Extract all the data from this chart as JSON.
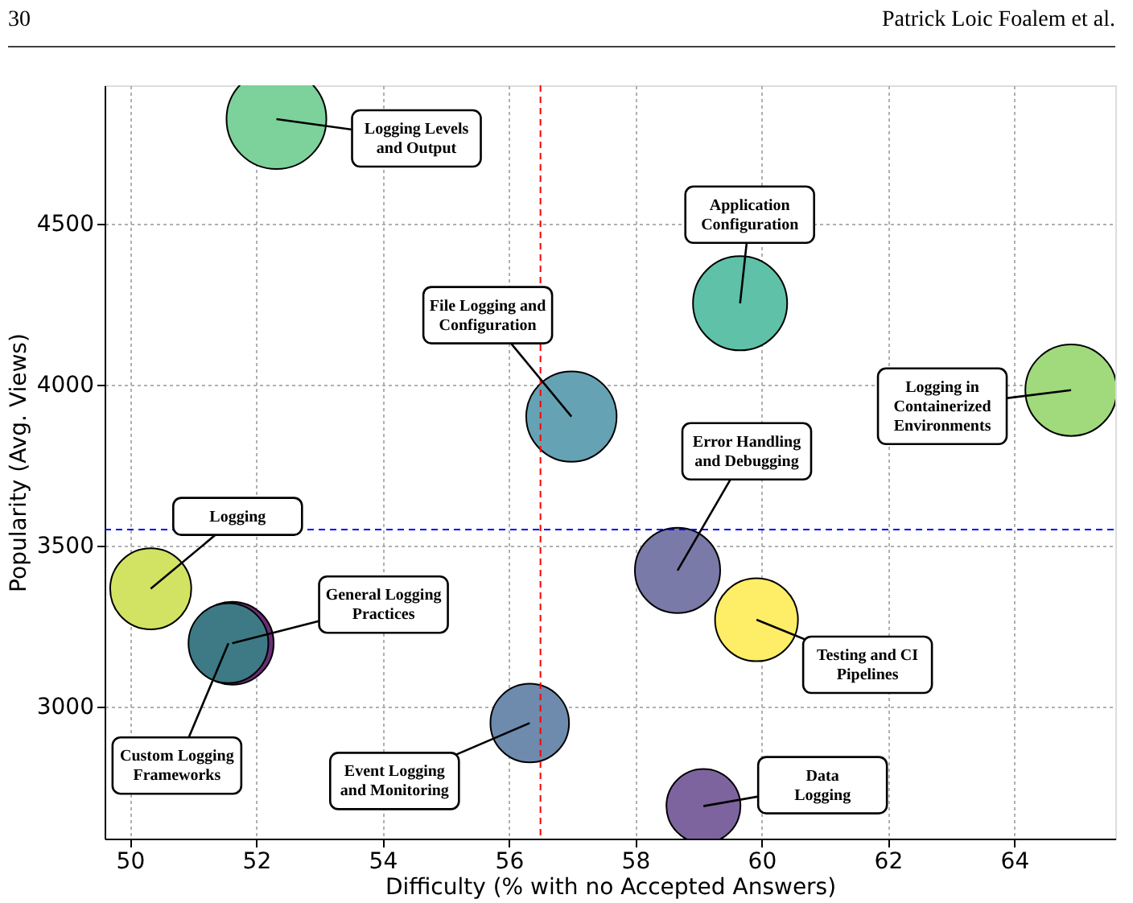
{
  "chart_data": {
    "type": "bubble",
    "x": [
      52.32,
      59.66,
      64.9,
      56.99,
      58.67,
      59.92,
      50.33,
      51.62,
      51.56,
      56.33,
      59.08
    ],
    "values": [
      4825,
      4253,
      3983,
      3901,
      3423,
      3270,
      3366,
      3197,
      3197,
      2949,
      2691
    ],
    "sizes": [
      1,
      0.89,
      0.84,
      0.82,
      0.73,
      0.69,
      0.66,
      0.69,
      0.64,
      0.62,
      0.55
    ],
    "colors": [
      "#7dd19a",
      "#5fc1a8",
      "#a0da7c",
      "#65a2b4",
      "#7a7aa8",
      "#fded67",
      "#d2e363",
      "#6b2d78",
      "#3e7a86",
      "#6e8aad",
      "#7d649e"
    ],
    "xlabel": "Difficulty (% with no Accepted Answers)",
    "ylabel": "Popularity (Avg. Views)",
    "xlim": [
      49.6,
      65.6
    ],
    "xticks": [
      50,
      52,
      54,
      56,
      58,
      60,
      62,
      64
    ],
    "ylim": [
      2590,
      4930
    ],
    "yticks": [
      3000,
      3500,
      4000,
      4500
    ],
    "grid": true,
    "legend": false,
    "ref_lines": [
      {
        "axis": "x",
        "value": 56.5,
        "color": "#ff0000",
        "line_style": "dashed"
      },
      {
        "axis": "y",
        "value": 3550,
        "color": "#0000ff",
        "line_style": "dashed"
      }
    ],
    "annotations": [
      "30",
      "Patrick Loic Foalem et al.",
      {
        "text": "Logging Levels\nand Output",
        "x": 52.32,
        "y": 4825
      },
      {
        "text": "Application\nConfiguration",
        "x": 59.66,
        "y": 4253
      },
      {
        "text": "Logging in\nContainerized\nEnvironments",
        "x": 64.9,
        "y": 3983
      },
      {
        "text": "File Logging and\nConfiguration",
        "x": 56.99,
        "y": 3901
      },
      {
        "text": "Error Handling\nand Debugging",
        "x": 58.67,
        "y": 3423
      },
      {
        "text": "Testing and CI\nPipelines",
        "x": 59.92,
        "y": 3270
      },
      {
        "text": "Logging",
        "x": 50.33,
        "y": 3366
      },
      {
        "text": "General Logging\nPractices",
        "x": 51.62,
        "y": 3197
      },
      {
        "text": "Custom Logging\nFrameworks",
        "x": 51.56,
        "y": 3197
      },
      {
        "text": "Event Logging\nand Monitoring",
        "x": 56.33,
        "y": 2949
      },
      {
        "text": "Data\nLogging",
        "x": 59.08,
        "y": 2691
      }
    ]
  }
}
